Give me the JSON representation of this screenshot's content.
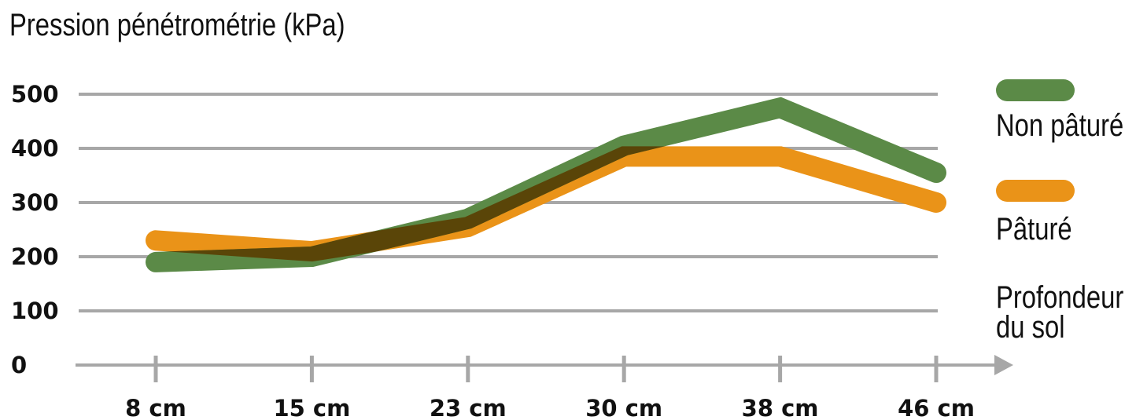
{
  "chart_data": {
    "type": "line",
    "title": "Pression pénétrométrie (kPa)",
    "xlabel": "Profondeur du sol",
    "categories": [
      "8 cm",
      "15 cm",
      "23 cm",
      "30 cm",
      "38 cm",
      "46 cm"
    ],
    "yticks": [
      "0",
      "100",
      "200",
      "300",
      "400",
      "500"
    ],
    "ylim": [
      0,
      500
    ],
    "grid": true,
    "legend_position": "right",
    "series": [
      {
        "name": "Non pâturé",
        "color": "#5b8a47",
        "values": [
          190,
          200,
          270,
          405,
          475,
          355
        ]
      },
      {
        "name": "Pâturé",
        "color": "#ea9318",
        "values": [
          230,
          210,
          255,
          385,
          385,
          300
        ]
      }
    ],
    "overlap_color": "#5a4508",
    "axis_color": "#a7a7a7"
  }
}
